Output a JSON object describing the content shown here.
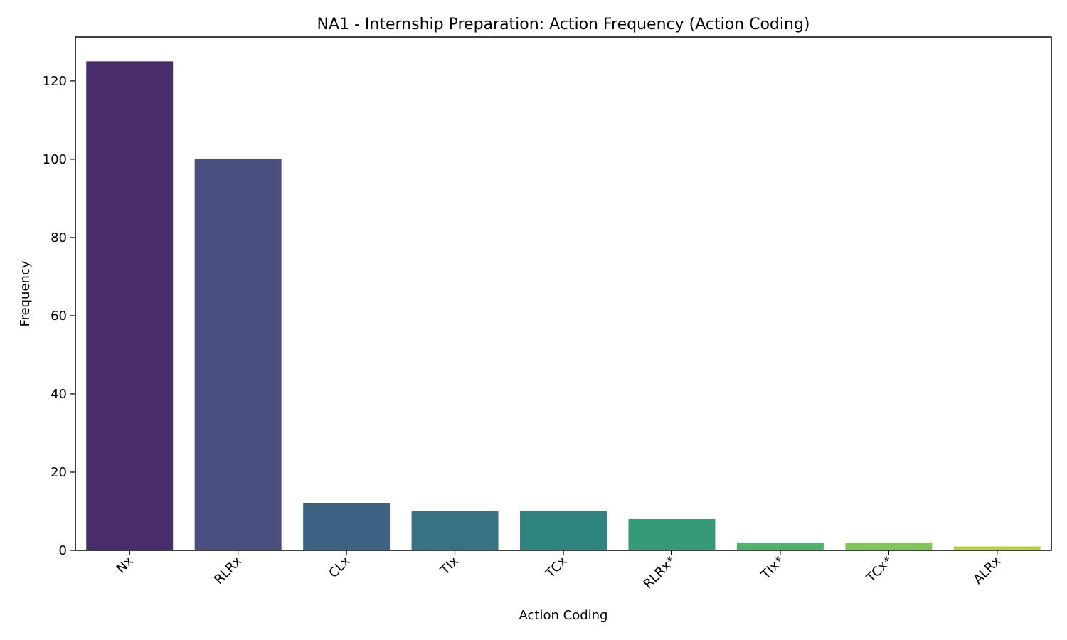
{
  "chart_data": {
    "type": "bar",
    "title": "NA1 - Internship Preparation: Action Frequency (Action Coding)",
    "xlabel": "Action Coding",
    "ylabel": "Frequency",
    "categories": [
      "Nx",
      "RLRx",
      "CLx",
      "TIx",
      "TCx",
      "RLRx*",
      "TIx*",
      "TCx*",
      "ALRx"
    ],
    "values": [
      125,
      100,
      12,
      10,
      10,
      8,
      2,
      2,
      1
    ],
    "colors": [
      "#482c6b",
      "#4a4e7e",
      "#3d6183",
      "#377283",
      "#2f8480",
      "#349a78",
      "#4fb26b",
      "#7ec75a",
      "#b5d33f"
    ],
    "ylim": [
      0,
      131.25
    ],
    "yticks": [
      0,
      20,
      40,
      60,
      80,
      100,
      120
    ],
    "ytick_labels": [
      "0",
      "20",
      "40",
      "60",
      "80",
      "100",
      "120"
    ],
    "xtick_rotation": 45,
    "grid": false,
    "legend": "none"
  }
}
